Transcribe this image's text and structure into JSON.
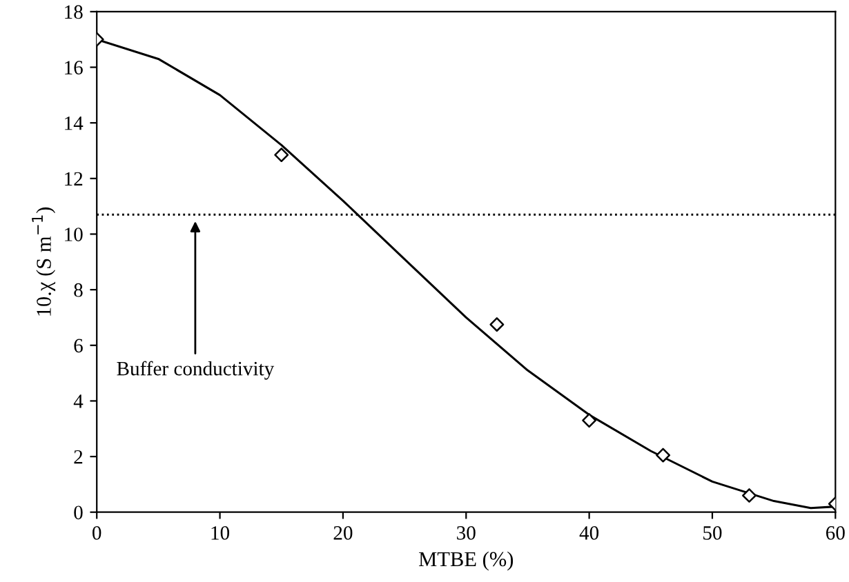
{
  "chart_data": {
    "type": "scatter",
    "xlabel": "MTBE (%)",
    "ylabel": "10.χ (S m$^{−1}$)",
    "xlim": [
      0,
      60
    ],
    "xticks": [
      0,
      10,
      20,
      30,
      40,
      50,
      60
    ],
    "ylim": [
      0,
      18
    ],
    "yticks": [
      0,
      2,
      4,
      6,
      8,
      10,
      12,
      14,
      16,
      18
    ],
    "grid": false,
    "marker": "diamond",
    "series": [
      {
        "color": "#000000",
        "x": [
          0,
          15,
          32.5,
          40,
          46,
          53,
          60
        ],
        "values": [
          17,
          12.85,
          6.75,
          3.3,
          2.05,
          0.6,
          0.3
        ]
      },
      {
        "type": "line",
        "color": "#000000",
        "marker": "none",
        "line_style": "solid",
        "x": [
          0,
          5,
          10,
          15,
          20,
          25,
          30,
          35,
          40,
          45,
          50,
          55,
          58,
          60
        ],
        "values": [
          17,
          16.3,
          15,
          13.2,
          11.2,
          9.1,
          7.0,
          5.1,
          3.5,
          2.2,
          1.1,
          0.4,
          0.15,
          0.2
        ]
      }
    ],
    "ref_lines": [
      {
        "axis": "y",
        "value": 10.7,
        "line_style": "dotted",
        "color": "#000000"
      }
    ],
    "annotations": [
      {
        "text": "Buffer conductivity",
        "x": 8,
        "y": 10.6
      }
    ]
  }
}
